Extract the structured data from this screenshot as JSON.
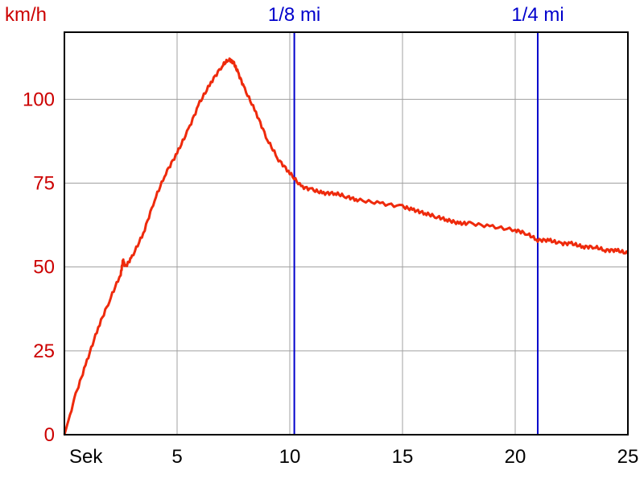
{
  "colors": {
    "series": "#ee2a0c",
    "axis_label": "#cc0000",
    "marker": "#0000cc",
    "grid": "#a0a0a0",
    "frame": "#000000"
  },
  "chart_data": {
    "type": "line",
    "ylabel": "km/h",
    "xlabel": "Sek",
    "xlim": [
      0,
      25
    ],
    "ylim": [
      0,
      120
    ],
    "grid": true,
    "xticks": [
      5,
      10,
      15,
      20,
      25
    ],
    "xtick_labels": [
      "5",
      "10",
      "15",
      "20",
      "25"
    ],
    "yticks": [
      0,
      25,
      50,
      75,
      100
    ],
    "ytick_labels": [
      "0",
      "25",
      "50",
      "75",
      "100"
    ],
    "markers": [
      {
        "label": "1/8 mi",
        "x": 10.2
      },
      {
        "label": "1/4 mi",
        "x": 21.0
      }
    ],
    "series": [
      {
        "x": [
          0,
          0.5,
          1.0,
          1.5,
          2.0,
          2.5,
          2.6,
          2.7,
          3.0,
          3.5,
          4.0,
          4.5,
          5.0,
          5.5,
          6.0,
          6.5,
          7.0,
          7.3,
          7.5,
          7.7,
          8.0,
          8.5,
          9.0,
          9.5,
          10.0,
          10.5,
          11.0,
          11.5,
          12.0,
          12.5,
          13.0,
          14.0,
          15.0,
          15.5,
          16.0,
          16.5,
          17.0,
          17.5,
          18.0,
          19.0,
          20.0,
          20.5,
          21.0,
          21.5,
          22.0,
          22.5,
          23.0,
          23.5,
          24.0,
          24.5,
          25.0
        ],
        "y": [
          0,
          12,
          22,
          32,
          40,
          48,
          52,
          50,
          53,
          60,
          70,
          78,
          84,
          91,
          99,
          105,
          110,
          112,
          111,
          108,
          103,
          96,
          88,
          82,
          78,
          74,
          73,
          72,
          72,
          71,
          70,
          69,
          68,
          67,
          66,
          65,
          64,
          63,
          63,
          62,
          61,
          60,
          58,
          58,
          57,
          57,
          56,
          56,
          55,
          55,
          54
        ]
      }
    ]
  }
}
